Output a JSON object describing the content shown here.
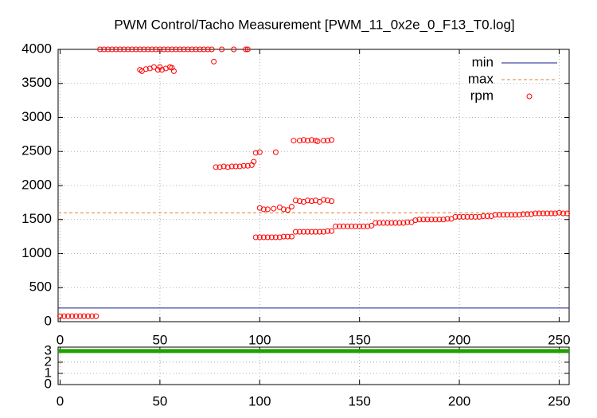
{
  "chart_data": [
    {
      "type": "scatter",
      "title": "PWM Control/Tacho Measurement [PWM_11_0x2e_0_F13_T0.log]",
      "xlim": [
        -1,
        255
      ],
      "xticks": [
        0,
        50,
        100,
        150,
        200,
        250
      ],
      "ylim": [
        0,
        4000
      ],
      "yticks": [
        0,
        500,
        1000,
        1500,
        2000,
        2500,
        3000,
        3500,
        4000
      ],
      "grid": true,
      "legend": "top-right",
      "series": [
        {
          "name": "min",
          "color": "#1a1a8c",
          "style": "line",
          "x": [
            -1,
            255
          ],
          "values": [
            200,
            200
          ]
        },
        {
          "name": "max",
          "color": "#e08030",
          "style": "dashed",
          "x": [
            -1,
            255
          ],
          "values": [
            1600,
            1600
          ]
        },
        {
          "name": "rpm",
          "color": "#ff0000",
          "style": "points",
          "x": [
            0,
            2,
            4,
            6,
            8,
            10,
            12,
            14,
            16,
            18,
            20,
            22,
            24,
            26,
            28,
            30,
            32,
            34,
            36,
            38,
            40,
            42,
            44,
            46,
            48,
            50,
            52,
            54,
            56,
            58,
            60,
            62,
            64,
            66,
            68,
            70,
            72,
            74,
            76,
            78,
            80,
            82,
            84,
            86,
            88,
            90,
            92,
            94,
            96,
            98,
            100,
            102,
            104,
            106,
            108,
            110,
            112,
            114,
            116,
            118,
            120,
            122,
            124,
            126,
            128,
            130,
            132,
            134,
            136,
            138,
            140,
            142,
            144,
            146,
            148,
            150,
            152,
            154,
            156,
            158,
            160,
            162,
            164,
            166,
            168,
            170,
            172,
            174,
            176,
            178,
            180,
            182,
            184,
            186,
            188,
            190,
            192,
            194,
            196,
            198,
            200,
            202,
            204,
            206,
            208,
            210,
            212,
            214,
            216,
            218,
            220,
            222,
            224,
            226,
            228,
            230,
            232,
            234,
            236,
            238,
            240,
            242,
            244,
            246,
            248,
            250,
            252,
            254,
            40,
            41,
            43,
            45,
            47,
            49,
            50,
            51,
            53,
            55,
            56,
            57,
            77,
            81,
            87,
            93,
            94,
            97,
            98,
            100,
            108,
            117,
            120,
            122,
            124,
            126,
            128,
            129,
            132,
            134,
            136,
            100,
            102,
            104,
            107,
            110,
            112,
            114,
            116,
            118,
            120,
            122,
            124,
            126,
            128,
            130,
            132,
            134,
            136
          ],
          "values": [
            80,
            80,
            80,
            80,
            80,
            80,
            80,
            80,
            80,
            80,
            4000,
            4000,
            4000,
            4000,
            4000,
            4000,
            4000,
            4000,
            4000,
            4000,
            4000,
            4000,
            4000,
            4000,
            4000,
            4000,
            4000,
            4000,
            4000,
            4000,
            4000,
            4000,
            4000,
            4000,
            4000,
            4000,
            4000,
            4000,
            4000,
            2270,
            2270,
            2280,
            2270,
            2280,
            2280,
            2280,
            2290,
            2290,
            2300,
            1240,
            1240,
            1240,
            1240,
            1240,
            1240,
            1240,
            1250,
            1250,
            1250,
            1320,
            1320,
            1320,
            1320,
            1320,
            1320,
            1320,
            1320,
            1330,
            1330,
            1400,
            1400,
            1400,
            1400,
            1400,
            1400,
            1400,
            1400,
            1400,
            1410,
            1450,
            1450,
            1450,
            1450,
            1450,
            1450,
            1450,
            1450,
            1460,
            1460,
            1490,
            1500,
            1500,
            1500,
            1500,
            1500,
            1500,
            1500,
            1510,
            1510,
            1540,
            1540,
            1540,
            1540,
            1540,
            1540,
            1540,
            1550,
            1550,
            1550,
            1570,
            1570,
            1570,
            1570,
            1570,
            1570,
            1570,
            1580,
            1580,
            1580,
            1590,
            1590,
            1590,
            1590,
            1590,
            1590,
            1600,
            1590,
            1590,
            3700,
            3680,
            3710,
            3720,
            3740,
            3700,
            3740,
            3700,
            3720,
            3740,
            3730,
            3680,
            3820,
            4000,
            4000,
            4000,
            4000,
            2350,
            2480,
            2490,
            2490,
            2660,
            2660,
            2670,
            2660,
            2670,
            2660,
            2650,
            2660,
            2660,
            2670,
            1670,
            1650,
            1650,
            1660,
            1680,
            1650,
            1640,
            1690,
            1780,
            1770,
            1760,
            1780,
            1770,
            1780,
            1760,
            1790,
            1780,
            1770
          ]
        }
      ]
    },
    {
      "type": "line",
      "xlim": [
        -1,
        255
      ],
      "xticks": [
        0,
        50,
        100,
        150,
        200,
        250
      ],
      "ylim": [
        0,
        3.35
      ],
      "yticks": [
        0,
        1,
        2,
        3
      ],
      "grid": true,
      "series": [
        {
          "color": "#22a000",
          "style": "thick",
          "x": [
            -1,
            255
          ],
          "values": [
            3,
            3
          ]
        }
      ]
    }
  ]
}
